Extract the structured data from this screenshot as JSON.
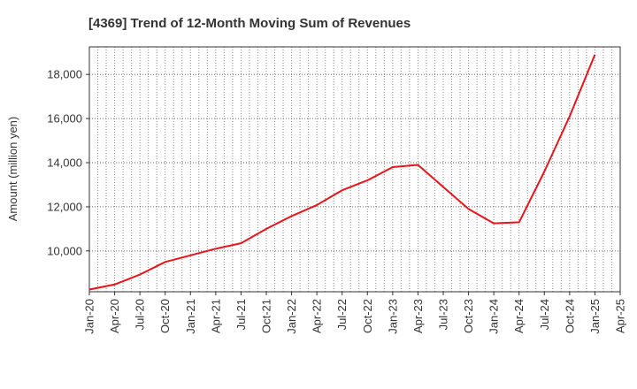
{
  "chart_data": {
    "type": "line",
    "title": "[4369]  Trend of 12-Month Moving Sum of Revenues",
    "ylabel": "Amount (million yen)",
    "xlabel": "",
    "ylim": [
      8150,
      19250
    ],
    "y_ticks": [
      10000,
      12000,
      14000,
      16000,
      18000
    ],
    "y_tick_labels": [
      "10,000",
      "12,000",
      "14,000",
      "16,000",
      "18,000"
    ],
    "x_tick_labels": [
      "Jan-20",
      "Apr-20",
      "Jul-20",
      "Oct-20",
      "Jan-21",
      "Apr-21",
      "Jul-21",
      "Oct-21",
      "Jan-22",
      "Apr-22",
      "Jul-22",
      "Oct-22",
      "Jan-23",
      "Apr-23",
      "Jul-23",
      "Oct-23",
      "Jan-24",
      "Apr-24",
      "Jul-24",
      "Oct-24",
      "Jan-25",
      "Apr-25"
    ],
    "grid": true,
    "series": [
      {
        "color": "#e8141b",
        "points": [
          {
            "x": "Jan-20",
            "y": 8250
          },
          {
            "x": "Apr-20",
            "y": 8480
          },
          {
            "x": "Jul-20",
            "y": 8930
          },
          {
            "x": "Oct-20",
            "y": 9500
          },
          {
            "x": "Jan-21",
            "y": 9800
          },
          {
            "x": "Apr-21",
            "y": 10100
          },
          {
            "x": "Jul-21",
            "y": 10350
          },
          {
            "x": "Oct-21",
            "y": 11000
          },
          {
            "x": "Jan-22",
            "y": 11580
          },
          {
            "x": "Apr-22",
            "y": 12080
          },
          {
            "x": "Jul-22",
            "y": 12750
          },
          {
            "x": "Oct-22",
            "y": 13200
          },
          {
            "x": "Jan-23",
            "y": 13800
          },
          {
            "x": "Apr-23",
            "y": 13900
          },
          {
            "x": "Jul-23",
            "y": 12900
          },
          {
            "x": "Oct-23",
            "y": 11900
          },
          {
            "x": "Jan-24",
            "y": 11250
          },
          {
            "x": "Apr-24",
            "y": 11300
          },
          {
            "x": "Jul-24",
            "y": 13600
          },
          {
            "x": "Oct-24",
            "y": 16100
          },
          {
            "x": "Jan-25",
            "y": 18900
          }
        ]
      }
    ]
  }
}
